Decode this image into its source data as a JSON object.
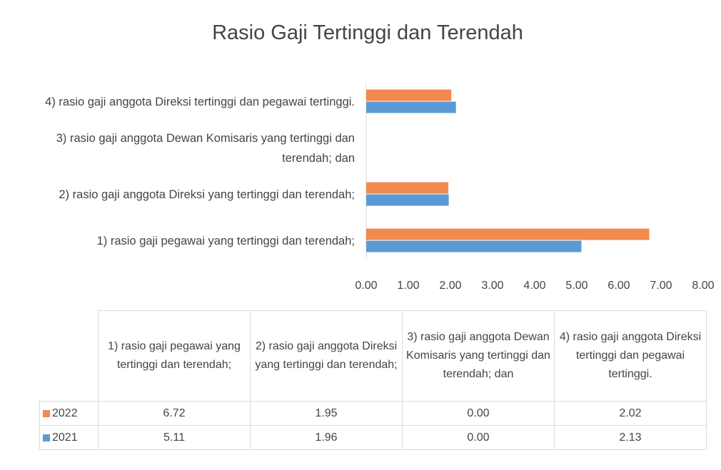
{
  "chart_data": {
    "type": "bar",
    "orientation": "horizontal",
    "title": "Rasio Gaji Tertinggi dan Terendah",
    "categories": [
      "1) rasio gaji pegawai yang tertinggi dan terendah;",
      "2) rasio gaji anggota Direksi yang tertinggi dan terendah;",
      "3) rasio gaji anggota Dewan Komisaris yang tertinggi dan terendah; dan",
      "4) rasio gaji anggota Direksi tertinggi dan pegawai tertinggi."
    ],
    "series": [
      {
        "name": "2022",
        "color": "#f28a4f",
        "values": [
          6.72,
          1.95,
          0,
          2.02
        ],
        "value_labels": [
          "6.72",
          "1.95",
          "0.00",
          "2.02"
        ]
      },
      {
        "name": "2021",
        "color": "#5b9bd5",
        "values": [
          5.11,
          1.96,
          0,
          2.13
        ],
        "value_labels": [
          "5.11",
          "1.96",
          "0.00",
          "2.13"
        ]
      }
    ],
    "xlim": [
      0,
      8
    ],
    "xticks": [
      {
        "value": 0,
        "label": "0.00"
      },
      {
        "value": 1,
        "label": "1.00"
      },
      {
        "value": 2,
        "label": "2.00"
      },
      {
        "value": 3,
        "label": "3.00"
      },
      {
        "value": 4,
        "label": "4.00"
      },
      {
        "value": 5,
        "label": "5.00"
      },
      {
        "value": 6,
        "label": "6.00"
      },
      {
        "value": 7,
        "label": "7.00"
      },
      {
        "value": 8,
        "label": "8.00"
      }
    ],
    "data_table": true
  }
}
